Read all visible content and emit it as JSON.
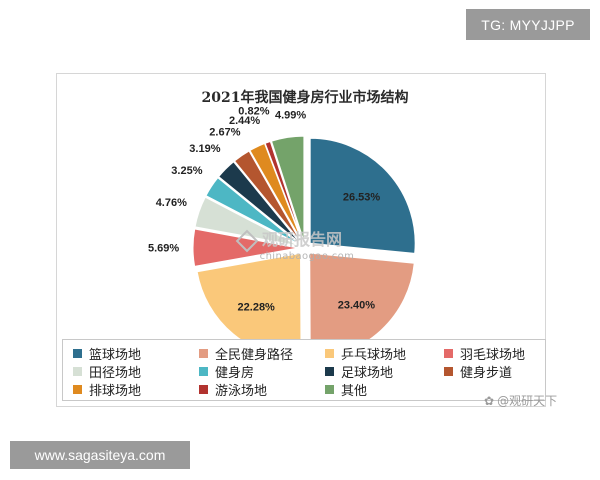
{
  "tg_badge": "TG: MYYJJPP",
  "url_badge": "www.sagasiteya.com",
  "watermark": {
    "logo_text": "观研报告网",
    "site_text": "chinabaogao.com",
    "corner_text": "@观研天下"
  },
  "chart_data": {
    "type": "pie",
    "title": "2021年我国健身房行业市场结构",
    "exploded": true,
    "slices": [
      {
        "name": "篮球场地",
        "value": 26.53,
        "label": "26.53%",
        "color": "#2e6f8e"
      },
      {
        "name": "全民健身路径",
        "value": 23.4,
        "label": "23.40%",
        "color": "#e39c82"
      },
      {
        "name": "乒乓球场地",
        "value": 22.28,
        "label": "22.28%",
        "color": "#fac87a"
      },
      {
        "name": "羽毛球场地",
        "value": 5.69,
        "label": "5.69%",
        "color": "#e46a68"
      },
      {
        "name": "田径场地",
        "value": 4.76,
        "label": "4.76%",
        "color": "#d6e0d5"
      },
      {
        "name": "健身房",
        "value": 3.25,
        "label": "3.25%",
        "color": "#4db7c4"
      },
      {
        "name": "足球场地",
        "value": 3.19,
        "label": "3.19%",
        "color": "#1c3a4c"
      },
      {
        "name": "健身步道",
        "value": 2.67,
        "label": "2.67%",
        "color": "#b4562f"
      },
      {
        "name": "排球场地",
        "value": 2.44,
        "label": "2.44%",
        "color": "#df8a1f"
      },
      {
        "name": "游泳场地",
        "value": 0.82,
        "label": "0.82%",
        "color": "#b2332f"
      },
      {
        "name": "其他",
        "value": 4.99,
        "label": "4.99%",
        "color": "#74a36a"
      }
    ],
    "legend_position": "bottom"
  }
}
